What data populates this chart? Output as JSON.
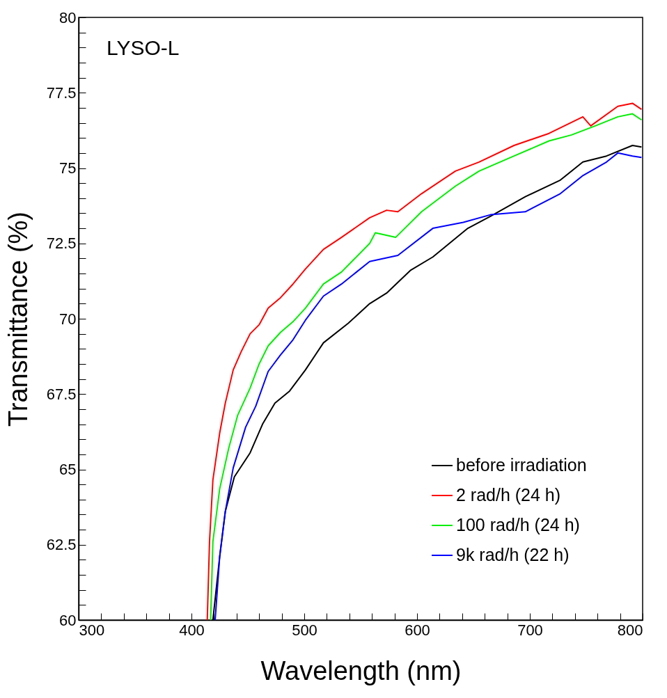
{
  "chart_data": {
    "type": "line",
    "title": "LYSO-L",
    "xlabel": "Wavelength (nm)",
    "ylabel": "Transmittance (%)",
    "xlim": [
      300,
      800
    ],
    "ylim": [
      60,
      80
    ],
    "xticks": [
      300,
      {
        "value": 320,
        "label": null
      },
      {
        "value": 340,
        "label": null
      },
      {
        "value": 360,
        "label": null
      },
      {
        "value": 380,
        "label": null
      },
      400,
      {
        "value": 420,
        "label": null
      },
      {
        "value": 440,
        "label": null
      },
      {
        "value": 460,
        "label": null
      },
      {
        "value": 480,
        "label": null
      },
      500,
      {
        "value": 520,
        "label": null
      },
      {
        "value": 540,
        "label": null
      },
      {
        "value": 560,
        "label": null
      },
      {
        "value": 580,
        "label": null
      },
      600,
      {
        "value": 620,
        "label": null
      },
      {
        "value": 640,
        "label": null
      },
      {
        "value": 660,
        "label": null
      },
      {
        "value": 680,
        "label": null
      },
      700,
      {
        "value": 720,
        "label": null
      },
      {
        "value": 740,
        "label": null
      },
      {
        "value": 760,
        "label": null
      },
      {
        "value": 780,
        "label": null
      },
      800
    ],
    "yticks": [
      60,
      {
        "value": 60.5,
        "label": null
      },
      {
        "value": 61,
        "label": null
      },
      {
        "value": 61.5,
        "label": null
      },
      {
        "value": 62,
        "label": null
      },
      62.5,
      {
        "value": 63,
        "label": null
      },
      {
        "value": 63.5,
        "label": null
      },
      {
        "value": 64,
        "label": null
      },
      {
        "value": 64.5,
        "label": null
      },
      65,
      {
        "value": 65.5,
        "label": null
      },
      {
        "value": 66,
        "label": null
      },
      {
        "value": 66.5,
        "label": null
      },
      {
        "value": 67,
        "label": null
      },
      67.5,
      {
        "value": 68,
        "label": null
      },
      {
        "value": 68.5,
        "label": null
      },
      {
        "value": 69,
        "label": null
      },
      {
        "value": 69.5,
        "label": null
      },
      70,
      {
        "value": 70.5,
        "label": null
      },
      {
        "value": 71,
        "label": null
      },
      {
        "value": 71.5,
        "label": null
      },
      {
        "value": 72,
        "label": null
      },
      72.5,
      {
        "value": 73,
        "label": null
      },
      {
        "value": 73.5,
        "label": null
      },
      {
        "value": 74,
        "label": null
      },
      {
        "value": 74.5,
        "label": null
      },
      75,
      {
        "value": 75.5,
        "label": null
      },
      {
        "value": 76,
        "label": null
      },
      {
        "value": 76.5,
        "label": null
      },
      {
        "value": 77,
        "label": null
      },
      77.5,
      {
        "value": 78,
        "label": null
      },
      {
        "value": 78.5,
        "label": null
      },
      {
        "value": 79,
        "label": null
      },
      {
        "value": 79.5,
        "label": null
      },
      80
    ],
    "grid": false,
    "legend": "bottom right",
    "line_style": "solid",
    "marker": "none",
    "series": [
      {
        "name": "before irradiation",
        "color": "#000000",
        "x": [
          419,
          425,
          430,
          438,
          452,
          463,
          474,
          487,
          501,
          517,
          539,
          558,
          573,
          594,
          614,
          645,
          665,
          696,
          727,
          747,
          768,
          791,
          799
        ],
        "values": [
          60,
          62.1,
          63.6,
          64.75,
          65.55,
          66.5,
          67.2,
          67.6,
          68.3,
          69.2,
          69.85,
          70.5,
          70.85,
          71.6,
          72.05,
          73.0,
          73.4,
          74.05,
          74.6,
          75.2,
          75.4,
          75.75,
          75.7
        ]
      },
      {
        "name": "2 rad/h (24 h)",
        "color": "#ff0000",
        "x": [
          414,
          416,
          419,
          425,
          430,
          437,
          444,
          452,
          460,
          468,
          479,
          490,
          501,
          517,
          533,
          558,
          573,
          583,
          604,
          634,
          655,
          686,
          717,
          747,
          754,
          778,
          791,
          799
        ],
        "values": [
          60,
          62.6,
          64.65,
          66.2,
          67.2,
          68.3,
          68.9,
          69.5,
          69.8,
          70.35,
          70.7,
          71.15,
          71.65,
          72.3,
          72.7,
          73.35,
          73.6,
          73.55,
          74.15,
          74.9,
          75.2,
          75.75,
          76.15,
          76.7,
          76.4,
          77.05,
          77.15,
          76.95
        ]
      },
      {
        "name": "100 rad/h (24 h)",
        "color": "#00ee00",
        "x": [
          417,
          419,
          425,
          433,
          441,
          452,
          460,
          468,
          479,
          490,
          501,
          517,
          533,
          558,
          563,
          581,
          604,
          634,
          655,
          686,
          717,
          737,
          758,
          778,
          791,
          799
        ],
        "values": [
          60,
          62.6,
          64.35,
          65.7,
          66.8,
          67.7,
          68.5,
          69.1,
          69.55,
          69.9,
          70.35,
          71.15,
          71.55,
          72.5,
          72.85,
          72.7,
          73.55,
          74.4,
          74.9,
          75.4,
          75.9,
          76.1,
          76.4,
          76.7,
          76.8,
          76.6
        ]
      },
      {
        "name": "9k rad/h (22 h)",
        "color": "#0000ff",
        "x": [
          421,
          425,
          430,
          437,
          448,
          457,
          468,
          479,
          490,
          501,
          517,
          533,
          558,
          583,
          614,
          641,
          665,
          696,
          727,
          747,
          768,
          778,
          791,
          799
        ],
        "values": [
          60,
          62.1,
          63.6,
          65.05,
          66.4,
          67.1,
          68.25,
          68.8,
          69.3,
          69.95,
          70.75,
          71.15,
          71.9,
          72.1,
          73.0,
          73.2,
          73.45,
          73.55,
          74.15,
          74.75,
          75.2,
          75.5,
          75.4,
          75.35
        ]
      }
    ]
  }
}
